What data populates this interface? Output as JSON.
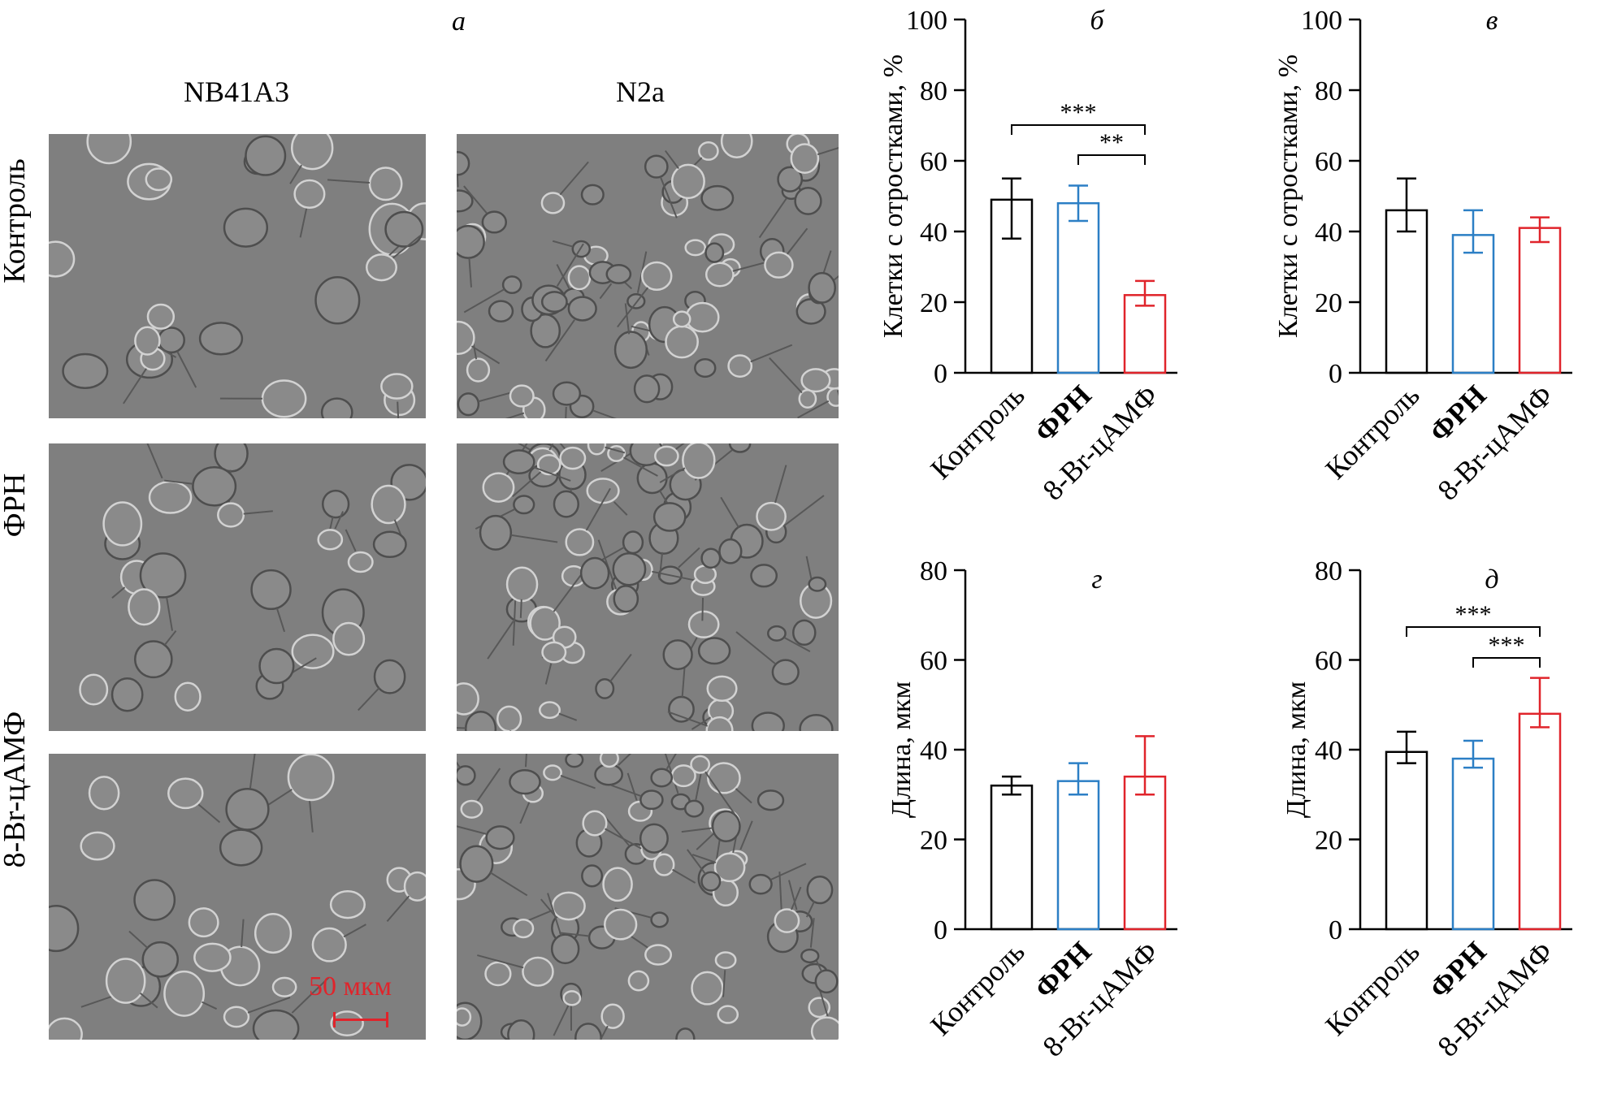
{
  "panel_a": {
    "letter": "а",
    "columns": [
      "NB41A3",
      "N2a"
    ],
    "rows": [
      "Контроль",
      "ФРН",
      "8-Br-цАМФ"
    ],
    "scale_bar_label": "50 мкм",
    "scale_bar_color": "#e0242b"
  },
  "colors": {
    "control": "#000000",
    "ngf": "#2c7fc5",
    "camp": "#e0242b"
  },
  "chart_data": [
    {
      "id": "b",
      "letter": "б",
      "type": "bar",
      "categories": [
        "Контроль",
        "ФРН",
        "8-Br-цАМФ"
      ],
      "values": [
        49,
        48,
        22
      ],
      "errors": [
        [
          38,
          55
        ],
        [
          43,
          53
        ],
        [
          19,
          26
        ]
      ],
      "ylabel": "Клетки с отростками, %",
      "ylim": [
        0,
        100
      ],
      "yticks": [
        0,
        20,
        40,
        60,
        80,
        100
      ],
      "significance": [
        {
          "from": 0,
          "to": 2,
          "label": "***"
        },
        {
          "from": 1,
          "to": 2,
          "label": "**"
        }
      ]
    },
    {
      "id": "v",
      "letter": "в",
      "type": "bar",
      "categories": [
        "Контроль",
        "ФРН",
        "8-Br-цАМФ"
      ],
      "values": [
        46,
        39,
        41
      ],
      "errors": [
        [
          40,
          55
        ],
        [
          34,
          46
        ],
        [
          37,
          44
        ]
      ],
      "ylabel": "Клетки с отростками, %",
      "ylim": [
        0,
        100
      ],
      "yticks": [
        0,
        20,
        40,
        60,
        80,
        100
      ],
      "significance": []
    },
    {
      "id": "g",
      "letter": "г",
      "type": "bar",
      "categories": [
        "Контроль",
        "ФРН",
        "8-Br-цАМФ"
      ],
      "values": [
        32,
        33,
        34
      ],
      "errors": [
        [
          30,
          34
        ],
        [
          30,
          37
        ],
        [
          30,
          43
        ]
      ],
      "ylabel": "Длина, мкм",
      "ylim": [
        0,
        80
      ],
      "yticks": [
        0,
        20,
        40,
        60,
        80
      ],
      "significance": []
    },
    {
      "id": "d",
      "letter": "д",
      "type": "bar",
      "categories": [
        "Контроль",
        "ФРН",
        "8-Br-цАМФ"
      ],
      "values": [
        39.5,
        38,
        48
      ],
      "errors": [
        [
          37,
          44
        ],
        [
          36,
          42
        ],
        [
          45,
          56
        ]
      ],
      "ylabel": "Длина, мкм",
      "ylim": [
        0,
        80
      ],
      "yticks": [
        0,
        20,
        40,
        60,
        80
      ],
      "significance": [
        {
          "from": 0,
          "to": 2,
          "label": "***"
        },
        {
          "from": 1,
          "to": 2,
          "label": "***"
        }
      ]
    }
  ]
}
